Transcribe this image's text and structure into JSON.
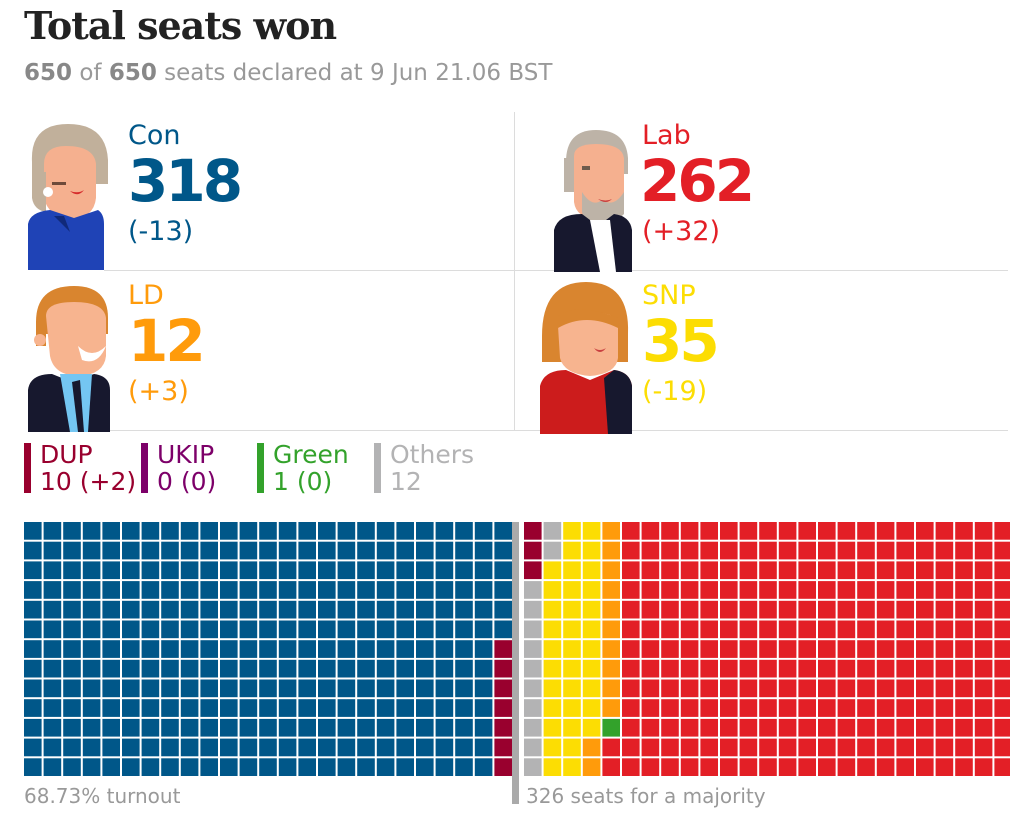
{
  "header": {
    "title": "Total seats won",
    "declared": "650",
    "of_label": "of",
    "total": "650",
    "declared_suffix": "seats declared at 9 Jun 21.06 BST"
  },
  "colors": {
    "con": "#005789",
    "lab": "#e31f26",
    "ld": "#ff9b0b",
    "snp": "#fcdd03",
    "dup": "#99002e",
    "ukip": "#7d0069",
    "green": "#33a22b",
    "others": "#b3b3b4",
    "majority_line": "#aaaaaa"
  },
  "parties": {
    "con": {
      "name": "Con",
      "seats": "318",
      "change": "(-13)",
      "avatar_icon": "theresa-may-avatar"
    },
    "lab": {
      "name": "Lab",
      "seats": "262",
      "change": "(+32)",
      "avatar_icon": "jeremy-corbyn-avatar"
    },
    "ld": {
      "name": "LD",
      "seats": "12",
      "change": "(+3)",
      "avatar_icon": "tim-farron-avatar"
    },
    "snp": {
      "name": "SNP",
      "seats": "35",
      "change": "(-19)",
      "avatar_icon": "nicola-sturgeon-avatar"
    }
  },
  "minor_parties": [
    {
      "name": "DUP",
      "value": "10 (+2)",
      "color": "#99002e"
    },
    {
      "name": "UKIP",
      "value": "0 (0)",
      "color": "#7d0069"
    },
    {
      "name": "Green",
      "value": "1 (0)",
      "color": "#33a22b"
    },
    {
      "name": "Others",
      "value": "12",
      "color": "#b3b3b4"
    }
  ],
  "footer": {
    "turnout": "68.73% turnout",
    "majority": "326 seats for a majority"
  },
  "chart_data": {
    "type": "waffle",
    "title": "Total seats won",
    "total_seats": 650,
    "majority_threshold": 326,
    "series": [
      {
        "name": "Con",
        "value": 318,
        "color": "#005789"
      },
      {
        "name": "DUP",
        "value": 10,
        "color": "#99002e"
      },
      {
        "name": "Others",
        "value": 12,
        "color": "#b3b3b4"
      },
      {
        "name": "SNP",
        "value": 35,
        "color": "#fcdd03"
      },
      {
        "name": "LD",
        "value": 12,
        "color": "#ff9b0b"
      },
      {
        "name": "Green",
        "value": 1,
        "color": "#33a22b"
      },
      {
        "name": "Lab",
        "value": 262,
        "color": "#e31f26"
      }
    ]
  }
}
